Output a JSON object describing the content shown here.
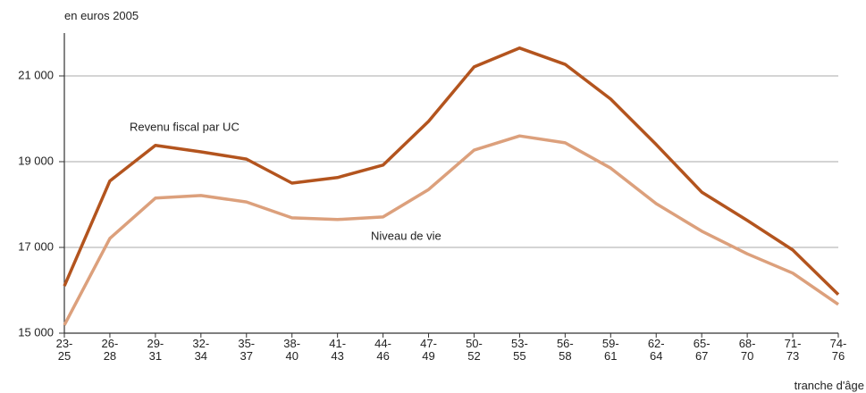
{
  "chart_data": {
    "type": "line",
    "y_label": "en euros 2005",
    "x_label": "tranche d'âge",
    "categories": [
      "23-\n25",
      "26-\n28",
      "29-\n31",
      "32-\n34",
      "35-\n37",
      "38-\n40",
      "41-\n43",
      "44-\n46",
      "47-\n49",
      "50-\n52",
      "53-\n55",
      "56-\n58",
      "59-\n61",
      "62-\n64",
      "65-\n67",
      "68-\n70",
      "71-\n73",
      "74-\n76"
    ],
    "series": [
      {
        "name": "Revenu fiscal par UC",
        "color": "#b3541e",
        "values": [
          16100,
          18550,
          19380,
          19230,
          19060,
          18500,
          18630,
          18920,
          19940,
          21210,
          21650,
          21270,
          20460,
          19400,
          18290,
          17630,
          16940,
          15900
        ]
      },
      {
        "name": "Niveau de vie",
        "color": "#dca07c",
        "values": [
          15190,
          17210,
          18150,
          18210,
          18060,
          17690,
          17650,
          17710,
          18350,
          19270,
          19600,
          19440,
          18850,
          18020,
          17380,
          16850,
          16400,
          15670
        ]
      }
    ],
    "ylim": [
      15000,
      22000
    ],
    "yticks": [
      {
        "value": 15000,
        "label": "15 000"
      },
      {
        "value": 17000,
        "label": "17 000"
      },
      {
        "value": 19000,
        "label": "19 000"
      },
      {
        "value": 21000,
        "label": "21 000"
      }
    ],
    "grid": true
  }
}
